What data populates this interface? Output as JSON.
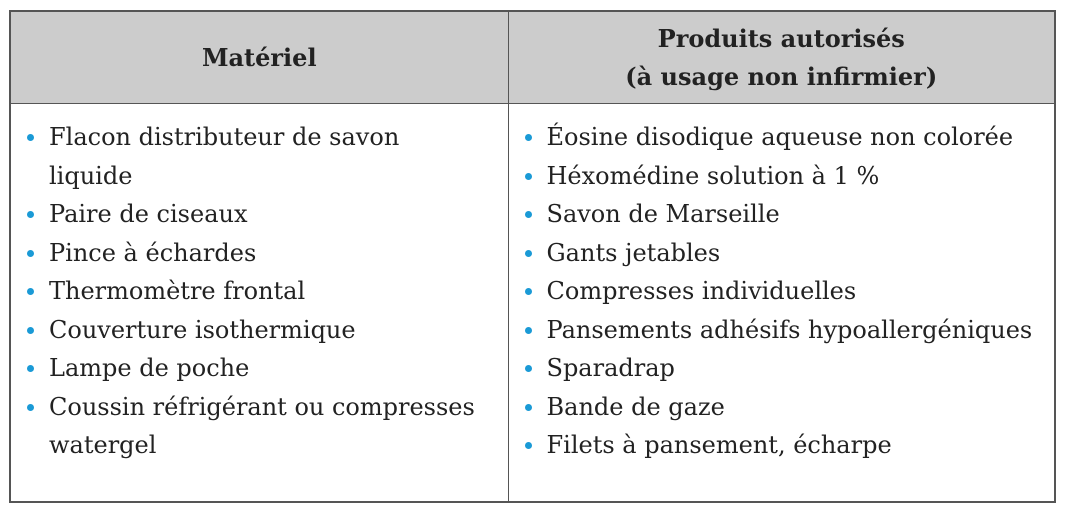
{
  "headers": [
    "Matériel",
    "Produits autorisés",
    "(à usage non infirmier)"
  ],
  "bullet_color": "#1a9ad6",
  "materiel": [
    "Flacon distributeur de savon liquide",
    "Paire de ciseaux",
    "Pince à échardes",
    "Thermomètre frontal",
    "Couverture isothermique",
    "Lampe de poche",
    "Coussin réfrigérant ou compresses watergel"
  ],
  "produits": [
    "Éosine disodique aqueuse non colorée",
    "Héxomédine solution à 1 %",
    "Savon de Marseille",
    "Gants jetables",
    "Compresses individuelles",
    "Pansements adhésifs hypoallergéniques",
    "Sparadrap",
    "Bande de gaze",
    "Filets à pansement, écharpe"
  ]
}
